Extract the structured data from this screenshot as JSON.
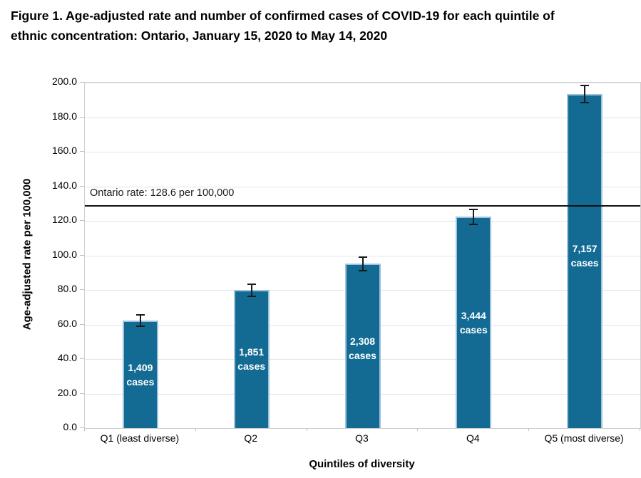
{
  "figure": {
    "title_lines": [
      "Figure 1. Age-adjusted rate and number of confirmed cases of COVID-19 for each quintile of",
      "ethnic concentration: Ontario, January 15, 2020 to May 14, 2020"
    ]
  },
  "chart_data": {
    "type": "bar",
    "title": "Figure 1. Age-adjusted rate and number of confirmed cases of COVID-19 for each quintile of ethnic concentration: Ontario, January 15, 2020 to May 14, 2020",
    "categories": [
      "Q1 (least diverse)",
      "Q2",
      "Q3",
      "Q4",
      "Q5 (most diverse)"
    ],
    "values": [
      62.3,
      79.9,
      95.1,
      122.3,
      193.4
    ],
    "error_bars": [
      3.2,
      3.5,
      3.8,
      4.5,
      5.0
    ],
    "bar_case_counts": [
      "1,409",
      "1,851",
      "2,308",
      "3,444",
      "7,157"
    ],
    "bar_label_word": "cases",
    "bar_label_center_values": [
      31,
      40,
      46,
      61,
      100
    ],
    "xlabel": "Quintiles of diversity",
    "ylabel": "Age-adjusted rate per 100,000",
    "ylim": [
      0,
      200
    ],
    "ytick_interval": 20,
    "ytick_decimals": 1,
    "reference_line": {
      "value": 128.6,
      "label": "Ontario rate: 128.6 per 100,000"
    },
    "legend": "none",
    "grid": "horizontal",
    "colors": {
      "bar_fill": "#136b94",
      "bar_edge": "#9dc3de",
      "reference_line": "#111111",
      "gridline": "#e5e5e5",
      "axis_border": "#cfcfcf",
      "text": "#000000",
      "bar_label_text": "#ffffff"
    }
  }
}
